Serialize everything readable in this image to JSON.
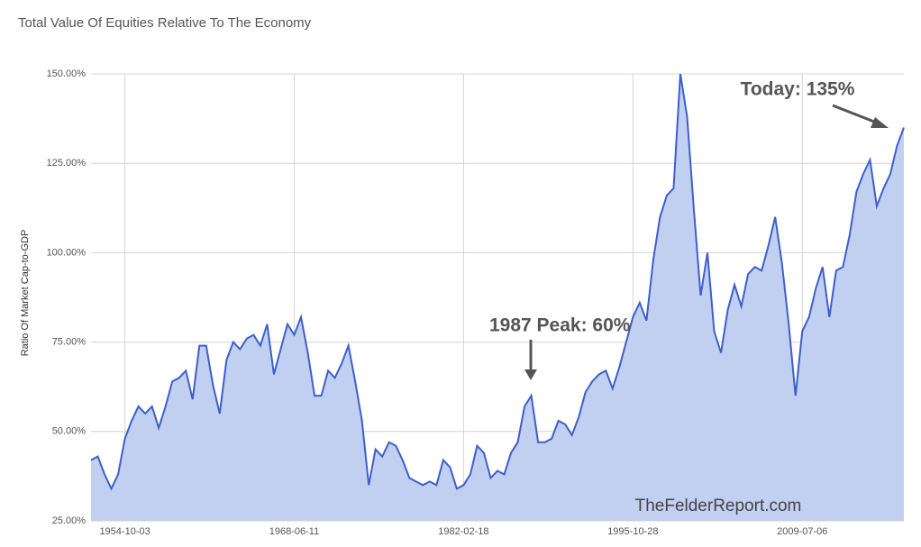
{
  "chart_data": {
    "type": "area",
    "title": "Total Value Of Equities Relative To The Economy",
    "y_label": "Ratio Of Market Cap-to-GDP",
    "categories": [
      null,
      null,
      null,
      null,
      null,
      "1954-10-03",
      null,
      null,
      null,
      null,
      null,
      null,
      null,
      null,
      null,
      null,
      null,
      null,
      null,
      null,
      null,
      null,
      null,
      null,
      null,
      null,
      null,
      null,
      null,
      null,
      "1968-06-11",
      null,
      null,
      null,
      null,
      null,
      null,
      null,
      null,
      null,
      null,
      null,
      null,
      null,
      null,
      null,
      null,
      null,
      null,
      null,
      null,
      null,
      null,
      null,
      null,
      "1982-02-18",
      null,
      null,
      null,
      null,
      null,
      null,
      null,
      null,
      null,
      null,
      null,
      null,
      null,
      null,
      null,
      null,
      null,
      null,
      null,
      null,
      null,
      null,
      null,
      null,
      "1995-10-28",
      null,
      null,
      null,
      null,
      null,
      null,
      null,
      null,
      null,
      null,
      null,
      null,
      null,
      null,
      null,
      null,
      null,
      null,
      null,
      null,
      null,
      null,
      null,
      null,
      "2009-07-06",
      null,
      null,
      null,
      null,
      null,
      null,
      null,
      null,
      null,
      null,
      null,
      null,
      null,
      null,
      null
    ],
    "series": [
      {
        "name": "Ratio Of Market Cap-to-GDP",
        "color": "#3d5fcb",
        "fill": "#c1cff1",
        "values": [
          42,
          43,
          38,
          34,
          38,
          48,
          53,
          57,
          55,
          57,
          51,
          57,
          64,
          65,
          67,
          59,
          74,
          74,
          63,
          55,
          70,
          75,
          73,
          76,
          77,
          74,
          80,
          66,
          73,
          80,
          77,
          82,
          72,
          60,
          60,
          67,
          65,
          69,
          74,
          64,
          53,
          35,
          45,
          43,
          47,
          46,
          42,
          37,
          36,
          35,
          36,
          35,
          42,
          40,
          34,
          35,
          38,
          46,
          44,
          37,
          39,
          38,
          44,
          47,
          57,
          60,
          47,
          47,
          48,
          53,
          52,
          49,
          54,
          61,
          64,
          66,
          67,
          62,
          68,
          75,
          82,
          86,
          81,
          98,
          110,
          116,
          118,
          150,
          138,
          112,
          88,
          100,
          78,
          72,
          84,
          91,
          85,
          94,
          96,
          95,
          102,
          110,
          97,
          80,
          60,
          78,
          82,
          90,
          96,
          82,
          95,
          96,
          105,
          117,
          122,
          126,
          113,
          118,
          122,
          130,
          135
        ]
      }
    ],
    "ylim": [
      25,
      150
    ],
    "yticks": [
      {
        "value": 25,
        "label": "25.00%"
      },
      {
        "value": 50,
        "label": "50.00%"
      },
      {
        "value": 75,
        "label": "75.00%"
      },
      {
        "value": 100,
        "label": "100.00%"
      },
      {
        "value": 125,
        "label": "125.00%"
      },
      {
        "value": 150,
        "label": "150.00%"
      }
    ],
    "grid": true,
    "annotations": [
      {
        "text": "1987 Peak: 60%"
      },
      {
        "text": "Today: 135%"
      }
    ],
    "watermark": "TheFelderReport.com"
  }
}
